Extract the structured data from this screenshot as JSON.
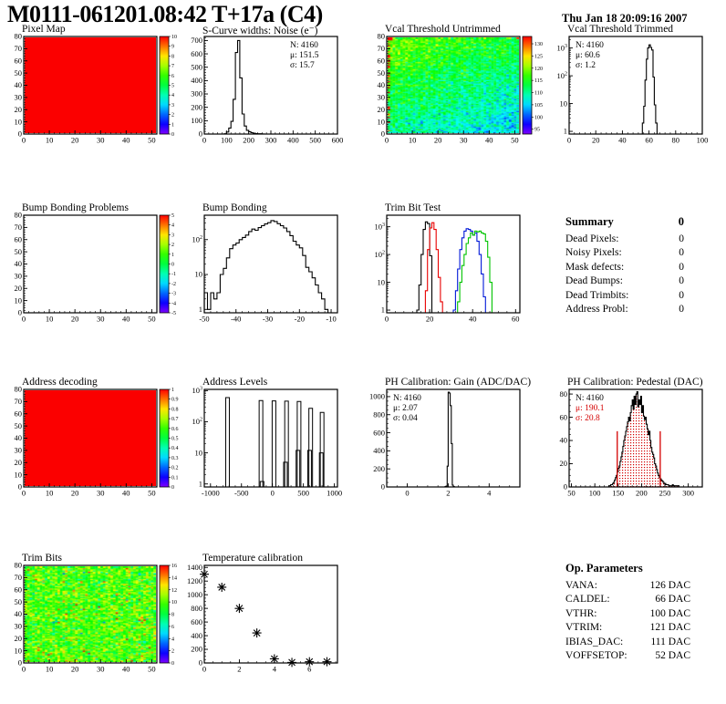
{
  "header": {
    "title": "M0111-061201.08:42 T+17a (C4)",
    "date": "Thu Jan 18 20:09:16 2007"
  },
  "summary": {
    "title": "Summary",
    "total": "0",
    "rows": [
      {
        "label": "Dead Pixels:",
        "value": "0"
      },
      {
        "label": "Noisy Pixels:",
        "value": "0"
      },
      {
        "label": "Mask defects:",
        "value": "0"
      },
      {
        "label": "Dead Bumps:",
        "value": "0"
      },
      {
        "label": "Dead Trimbits:",
        "value": "0"
      },
      {
        "label": "Address Probl:",
        "value": "0"
      }
    ]
  },
  "op_params": {
    "title": "Op. Parameters",
    "rows": [
      {
        "label": "VANA:",
        "value": "126 DAC"
      },
      {
        "label": "CALDEL:",
        "value": "66 DAC"
      },
      {
        "label": "VTHR:",
        "value": "100 DAC"
      },
      {
        "label": "VTRIM:",
        "value": "121 DAC"
      },
      {
        "label": "IBIAS_DAC:",
        "value": "111 DAC"
      },
      {
        "label": "VOFFSETOP:",
        "value": "52 DAC"
      }
    ]
  },
  "chart_data": [
    {
      "id": "pixel_map",
      "title": "Pixel Map",
      "type": "heatmap",
      "x_range": [
        0,
        52
      ],
      "y_range": [
        0,
        80
      ],
      "xticks": [
        0,
        10,
        20,
        30,
        40,
        50
      ],
      "xminor": 2,
      "yticks": [
        0,
        10,
        20,
        30,
        40,
        50,
        60,
        70,
        80
      ],
      "yminor": 2,
      "heatmap": {
        "map": "solid",
        "color": "#fb0000"
      },
      "colorbar": {
        "vmin": 0,
        "vmax": 10,
        "ticks": [
          "0",
          "1",
          "2",
          "3",
          "4",
          "5",
          "6",
          "7",
          "8",
          "9",
          "10"
        ]
      }
    },
    {
      "id": "scurve_noise",
      "title": "S-Curve widths: Noise (e⁻)",
      "type": "hist",
      "x_range": [
        0,
        600
      ],
      "y_range": [
        0,
        730
      ],
      "xticks": [
        0,
        100,
        200,
        300,
        400,
        500,
        600
      ],
      "xminor": 20,
      "yticks": [
        0,
        100,
        200,
        300,
        400,
        500,
        600,
        700
      ],
      "yminor": 20,
      "series": [
        {
          "color": "#000000",
          "bins": {
            "x0": 90,
            "dx": 10,
            "y": [
              2,
              15,
              45,
              95,
              260,
              610,
              700,
              420,
              150,
              60,
              28,
              18,
              10,
              6,
              3,
              2,
              2,
              1
            ]
          }
        }
      ],
      "stats": {
        "pos": "right",
        "lines": [
          {
            "t": "N: 4160"
          },
          {
            "t": "μ: 151.5"
          },
          {
            "t": "σ: 15.7"
          }
        ]
      }
    },
    {
      "id": "vcal_untrimmed",
      "title": "Vcal Threshold Untrimmed",
      "type": "heatmap",
      "x_range": [
        0,
        52
      ],
      "y_range": [
        0,
        80
      ],
      "xticks": [
        0,
        10,
        20,
        30,
        40,
        50
      ],
      "xminor": 2,
      "yticks": [
        0,
        10,
        20,
        30,
        40,
        50,
        60,
        70,
        80
      ],
      "yminor": 2,
      "heatmap": {
        "map": "noise",
        "nx": 52,
        "ny": 80,
        "mean": 112,
        "trend_x": -5,
        "trend_y": 9,
        "spread": 3.2,
        "vmin": 93,
        "vmax": 133,
        "seed": 42,
        "hot_edges": true
      },
      "colorbar": {
        "vmin": 93,
        "vmax": 133,
        "ticks": [
          "95",
          "100",
          "105",
          "110",
          "115",
          "120",
          "125",
          "130"
        ]
      }
    },
    {
      "id": "vcal_trimmed",
      "title": "Vcal Threshold Trimmed",
      "type": "hist",
      "ylog": true,
      "x_range": [
        0,
        100
      ],
      "y_range": [
        0.8,
        2600
      ],
      "xticks": [
        0,
        20,
        40,
        60,
        80,
        100
      ],
      "xminor": 4,
      "series": [
        {
          "color": "#000000",
          "bins": {
            "x0": 55,
            "dx": 1,
            "y": [
              2,
              8,
              70,
              400,
              1000,
              1300,
              1050,
              850,
              90,
              9,
              2
            ]
          }
        }
      ],
      "stats": {
        "pos": "left",
        "lines": [
          {
            "t": "N: 4160"
          },
          {
            "t": "μ: 60.6"
          },
          {
            "t": "σ: 1.2"
          }
        ]
      }
    },
    {
      "id": "bump_bonding_problems",
      "title": "Bump Bonding Problems",
      "type": "heatmap",
      "x_range": [
        0,
        52
      ],
      "y_range": [
        0,
        80
      ],
      "xticks": [
        0,
        10,
        20,
        30,
        40,
        50
      ],
      "xminor": 2,
      "yticks": [
        0,
        10,
        20,
        30,
        40,
        50,
        60,
        70,
        80
      ],
      "yminor": 2,
      "heatmap": {
        "map": "empty"
      },
      "colorbar": {
        "vmin": -5,
        "vmax": 5,
        "ticks": [
          "-5",
          "-4",
          "-3",
          "-2",
          "-1",
          "0",
          "1",
          "2",
          "3",
          "4",
          "5"
        ]
      }
    },
    {
      "id": "bump_bonding",
      "title": "Bump Bonding",
      "type": "hist",
      "ylog": true,
      "x_range": [
        -50,
        -8
      ],
      "y_range": [
        0.8,
        500
      ],
      "xticks": [
        -50,
        -40,
        -30,
        -20,
        -10
      ],
      "xminor": 2,
      "series": [
        {
          "color": "#000000",
          "bins": {
            "x0": -50,
            "dx": 1,
            "y": [
              3,
              1,
              3,
              2,
              3,
              10,
              15,
              30,
              55,
              70,
              80,
              100,
              115,
              135,
              170,
              200,
              185,
              220,
              250,
              280,
              305,
              350,
              330,
              285,
              250,
              215,
              170,
              130,
              90,
              70,
              58,
              35,
              16,
              12,
              8,
              5,
              3,
              2,
              1
            ]
          }
        }
      ]
    },
    {
      "id": "trim_bit_test",
      "title": "Trim Bit Test",
      "type": "hist",
      "ylog": true,
      "x_range": [
        0,
        62
      ],
      "y_range": [
        0.8,
        2600
      ],
      "xticks": [
        0,
        20,
        40,
        60
      ],
      "xminor": 4,
      "series": [
        {
          "color": "#000000",
          "bins": {
            "x0": 0,
            "dx": 1,
            "y": [
              0,
              0,
              0,
              0,
              0,
              0,
              0,
              0,
              0,
              0,
              0,
              0,
              0,
              0,
              1,
              8,
              100,
              800,
              1500,
              1300,
              90,
              0,
              0,
              0,
              0,
              0,
              0,
              0,
              0,
              0,
              0,
              0,
              0,
              0,
              0,
              0,
              0,
              0,
              0,
              0,
              0,
              0,
              0,
              0,
              0,
              0,
              0,
              0,
              0,
              0,
              0,
              0,
              0,
              0,
              0,
              0,
              0,
              0,
              0,
              0,
              0,
              0
            ]
          }
        },
        {
          "color": "#e80000",
          "bins": {
            "x0": 0,
            "dx": 1,
            "y": [
              0,
              0,
              0,
              0,
              0,
              0,
              0,
              0,
              0,
              0,
              0,
              0,
              0,
              0,
              0,
              0,
              0,
              0,
              5,
              150,
              900,
              1400,
              800,
              150,
              15,
              2,
              0,
              0,
              0,
              0,
              0,
              0,
              0,
              0,
              0,
              0,
              0,
              0,
              0,
              0,
              0,
              0,
              0,
              0,
              0,
              0,
              0,
              0,
              0,
              0,
              0,
              0,
              0,
              0,
              0,
              0,
              0,
              0,
              0,
              0,
              0,
              0
            ]
          }
        },
        {
          "color": "#0018d8",
          "bins": {
            "x0": 0,
            "dx": 1,
            "y": [
              0,
              0,
              0,
              0,
              0,
              0,
              0,
              0,
              0,
              0,
              0,
              0,
              0,
              0,
              0,
              0,
              0,
              0,
              0,
              0,
              0,
              0,
              0,
              0,
              0,
              0,
              0,
              0,
              0,
              0,
              0,
              1,
              5,
              30,
              150,
              400,
              700,
              850,
              800,
              700,
              500,
              600,
              300,
              100,
              20,
              3,
              0,
              0,
              0,
              0,
              0,
              0,
              0,
              0,
              0,
              0,
              0,
              0,
              0,
              0,
              0,
              0
            ]
          }
        },
        {
          "color": "#00c400",
          "bins": {
            "x0": 0,
            "dx": 1,
            "y": [
              0,
              0,
              0,
              0,
              0,
              0,
              0,
              0,
              0,
              0,
              0,
              0,
              0,
              0,
              0,
              0,
              0,
              0,
              0,
              0,
              0,
              0,
              0,
              0,
              0,
              0,
              0,
              0,
              0,
              0,
              0,
              0,
              0,
              2,
              10,
              40,
              100,
              250,
              400,
              600,
              500,
              700,
              650,
              700,
              600,
              550,
              300,
              80,
              10,
              0,
              0,
              0,
              0,
              0,
              0,
              0,
              0,
              0,
              0,
              0,
              0,
              0
            ]
          }
        }
      ]
    },
    {
      "id": "address_decoding",
      "title": "Address decoding",
      "type": "heatmap",
      "x_range": [
        0,
        52
      ],
      "y_range": [
        0,
        80
      ],
      "xticks": [
        0,
        10,
        20,
        30,
        40,
        50
      ],
      "xminor": 2,
      "yticks": [
        0,
        10,
        20,
        30,
        40,
        50,
        60,
        70,
        80
      ],
      "yminor": 2,
      "heatmap": {
        "map": "solid",
        "color": "#fb0000"
      },
      "colorbar": {
        "vmin": 0,
        "vmax": 1,
        "ticks": [
          "0",
          "0.1",
          "0.2",
          "0.3",
          "0.4",
          "0.5",
          "0.6",
          "0.7",
          "0.8",
          "0.9",
          "1"
        ]
      }
    },
    {
      "id": "address_levels",
      "title": "Address Levels",
      "type": "spikes",
      "ylog": true,
      "x_range": [
        -1100,
        1050
      ],
      "y_range": [
        0.8,
        1100
      ],
      "xticks": [
        -1000,
        -500,
        0,
        500,
        1000
      ],
      "xminor": 100,
      "spikes": [
        [
          -725,
          600
        ],
        [
          -185,
          480
        ],
        [
          -168,
          1.2
        ],
        [
          25,
          470
        ],
        [
          210,
          5
        ],
        [
          228,
          460
        ],
        [
          412,
          12
        ],
        [
          430,
          450
        ],
        [
          600,
          12
        ],
        [
          618,
          270
        ],
        [
          788,
          10
        ],
        [
          802,
          200
        ]
      ]
    },
    {
      "id": "ph_gain",
      "title": "PH Calibration: Gain (ADC/DAC)",
      "type": "hist",
      "x_range": [
        -1,
        5.5
      ],
      "y_range": [
        0,
        1080
      ],
      "xticks": [
        0,
        2,
        4
      ],
      "xminor": 0.5,
      "yticks": [
        0,
        200,
        400,
        600,
        800,
        1000
      ],
      "yminor": 50,
      "series": [
        {
          "color": "#000000",
          "bins": {
            "x0": 1.85,
            "dx": 0.05,
            "y": [
              5,
              10,
              230,
              1050,
              1040,
              900,
              480,
              20,
              5
            ]
          }
        }
      ],
      "stats": {
        "pos": "left",
        "lines": [
          {
            "t": "N: 4160"
          },
          {
            "t": "μ: 2.07"
          },
          {
            "t": "σ: 0.04"
          }
        ]
      }
    },
    {
      "id": "ph_pedestal",
      "title": "PH Calibration: Pedestal (DAC)",
      "type": "hist",
      "x_range": [
        45,
        330
      ],
      "y_range": [
        0,
        84
      ],
      "xticks": [
        50,
        100,
        150,
        200,
        250,
        300
      ],
      "xminor": 10,
      "yticks": [
        0,
        20,
        40,
        60,
        80
      ],
      "yminor": 5,
      "series": [
        {
          "color": "#000000",
          "fill": "dots",
          "bins": {
            "x0": 130,
            "dx": 2,
            "y": [
              1,
              1,
              2,
              2,
              3,
              4,
              6,
              8,
              10,
              13,
              16,
              18,
              22,
              26,
              30,
              35,
              40,
              44,
              48,
              52,
              56,
              60,
              57,
              64,
              70,
              75,
              67,
              78,
              71,
              80,
              82,
              69,
              75,
              71,
              78,
              64,
              70,
              61,
              58,
              60,
              54,
              50,
              45,
              48,
              40,
              34,
              30,
              28,
              25,
              20,
              18,
              15,
              12,
              10,
              8,
              7,
              6,
              5,
              4,
              3,
              3,
              2,
              2,
              2,
              1,
              1,
              1,
              1,
              2,
              1,
              1,
              1,
              1,
              1,
              1
            ]
          }
        }
      ],
      "vlines": [
        {
          "x": 148,
          "h": 48,
          "color": "#d40000"
        },
        {
          "x": 240,
          "h": 48,
          "color": "#d40000"
        }
      ],
      "stats": {
        "pos": "left",
        "lines": [
          {
            "t": "N: 4160"
          },
          {
            "t": "μ: 190.1",
            "c": "#d40000"
          },
          {
            "t": "σ: 20.8",
            "c": "#d40000"
          }
        ]
      }
    },
    {
      "id": "trim_bits",
      "title": "Trim Bits",
      "type": "heatmap",
      "x_range": [
        0,
        52
      ],
      "y_range": [
        0,
        80
      ],
      "xticks": [
        0,
        10,
        20,
        30,
        40,
        50
      ],
      "xminor": 2,
      "yticks": [
        0,
        10,
        20,
        30,
        40,
        50,
        60,
        70,
        80
      ],
      "yminor": 2,
      "heatmap": {
        "map": "noise",
        "nx": 52,
        "ny": 80,
        "mean": 9.8,
        "trend_x": 0,
        "trend_y": 0,
        "spread": 1.5,
        "vmin": 0,
        "vmax": 16,
        "seed": 99,
        "outliers": {
          "p_hi": 0.04,
          "p_lo": 0.02,
          "amp": 3.4
        }
      },
      "colorbar": {
        "vmin": 0,
        "vmax": 16,
        "ticks": [
          "0",
          "2",
          "4",
          "6",
          "8",
          "10",
          "12",
          "14",
          "16"
        ]
      }
    },
    {
      "id": "temperature_calibration",
      "title": "Temperature calibration",
      "type": "scatter",
      "x_range": [
        0,
        7.6
      ],
      "y_range": [
        0,
        1430
      ],
      "xticks": [
        0,
        2,
        4,
        6
      ],
      "xminor": 0.5,
      "yticks": [
        0,
        200,
        400,
        600,
        800,
        1000,
        1200,
        1400
      ],
      "yminor": 50,
      "marker": "asterisk",
      "points": [
        [
          0,
          1300
        ],
        [
          1,
          1110
        ],
        [
          2,
          800
        ],
        [
          3,
          440
        ],
        [
          4,
          60
        ],
        [
          5,
          8
        ],
        [
          6,
          18
        ],
        [
          7,
          18
        ]
      ]
    }
  ]
}
